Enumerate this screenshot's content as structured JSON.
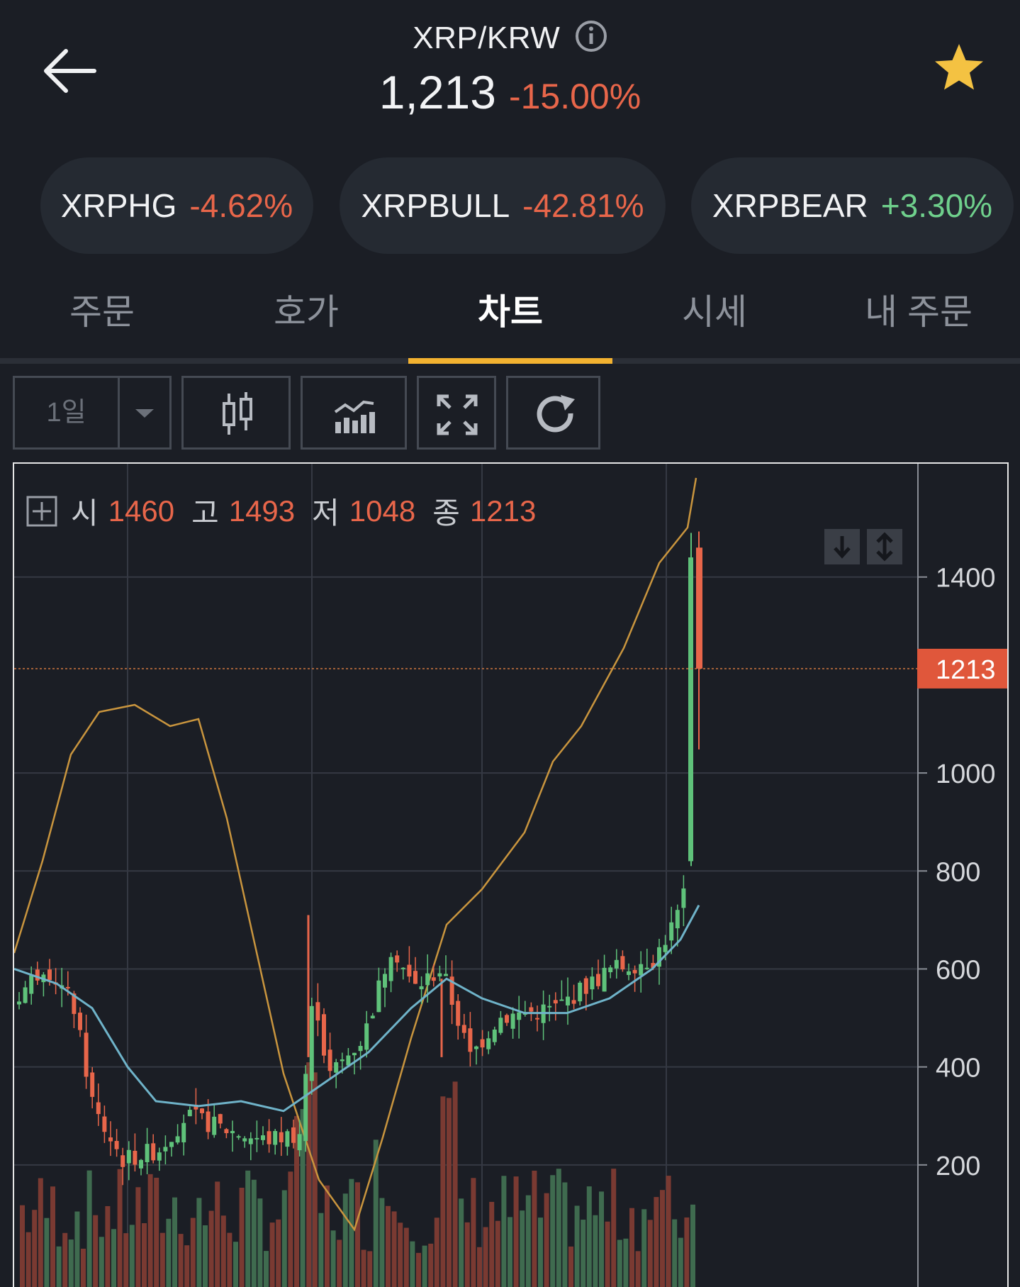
{
  "header": {
    "pair": "XRP/KRW",
    "price": "1,213",
    "change": "-15.00%"
  },
  "related": [
    {
      "name": "XRPHG",
      "change": "-4.62%"
    },
    {
      "name": "XRPBULL",
      "change": "-42.81%"
    },
    {
      "name": "XRPBEAR",
      "change": "+3.30%"
    }
  ],
  "tabs": [
    "주문",
    "호가",
    "차트",
    "시세",
    "내 주문"
  ],
  "active_tab": "차트",
  "toolbar": {
    "period": "1일"
  },
  "ohlc": {
    "open_label": "시",
    "open": "1460",
    "high_label": "고",
    "high": "1493",
    "low_label": "저",
    "low": "1048",
    "close_label": "종",
    "close": "1213"
  },
  "colors": {
    "up": "#5fc27a",
    "down": "#e8664a",
    "accent": "#f3b230",
    "star": "#f4c242"
  },
  "chart_data": {
    "type": "candlestick",
    "y_ticks": [
      "1400",
      "1000",
      "800",
      "600",
      "400",
      "200"
    ],
    "current_price": "1213",
    "last_candle": {
      "open": 1460,
      "high": 1493,
      "low": 1048,
      "close": 1213
    },
    "overlays": [
      "moving-averages",
      "bollinger-band",
      "volume-bars"
    ]
  }
}
